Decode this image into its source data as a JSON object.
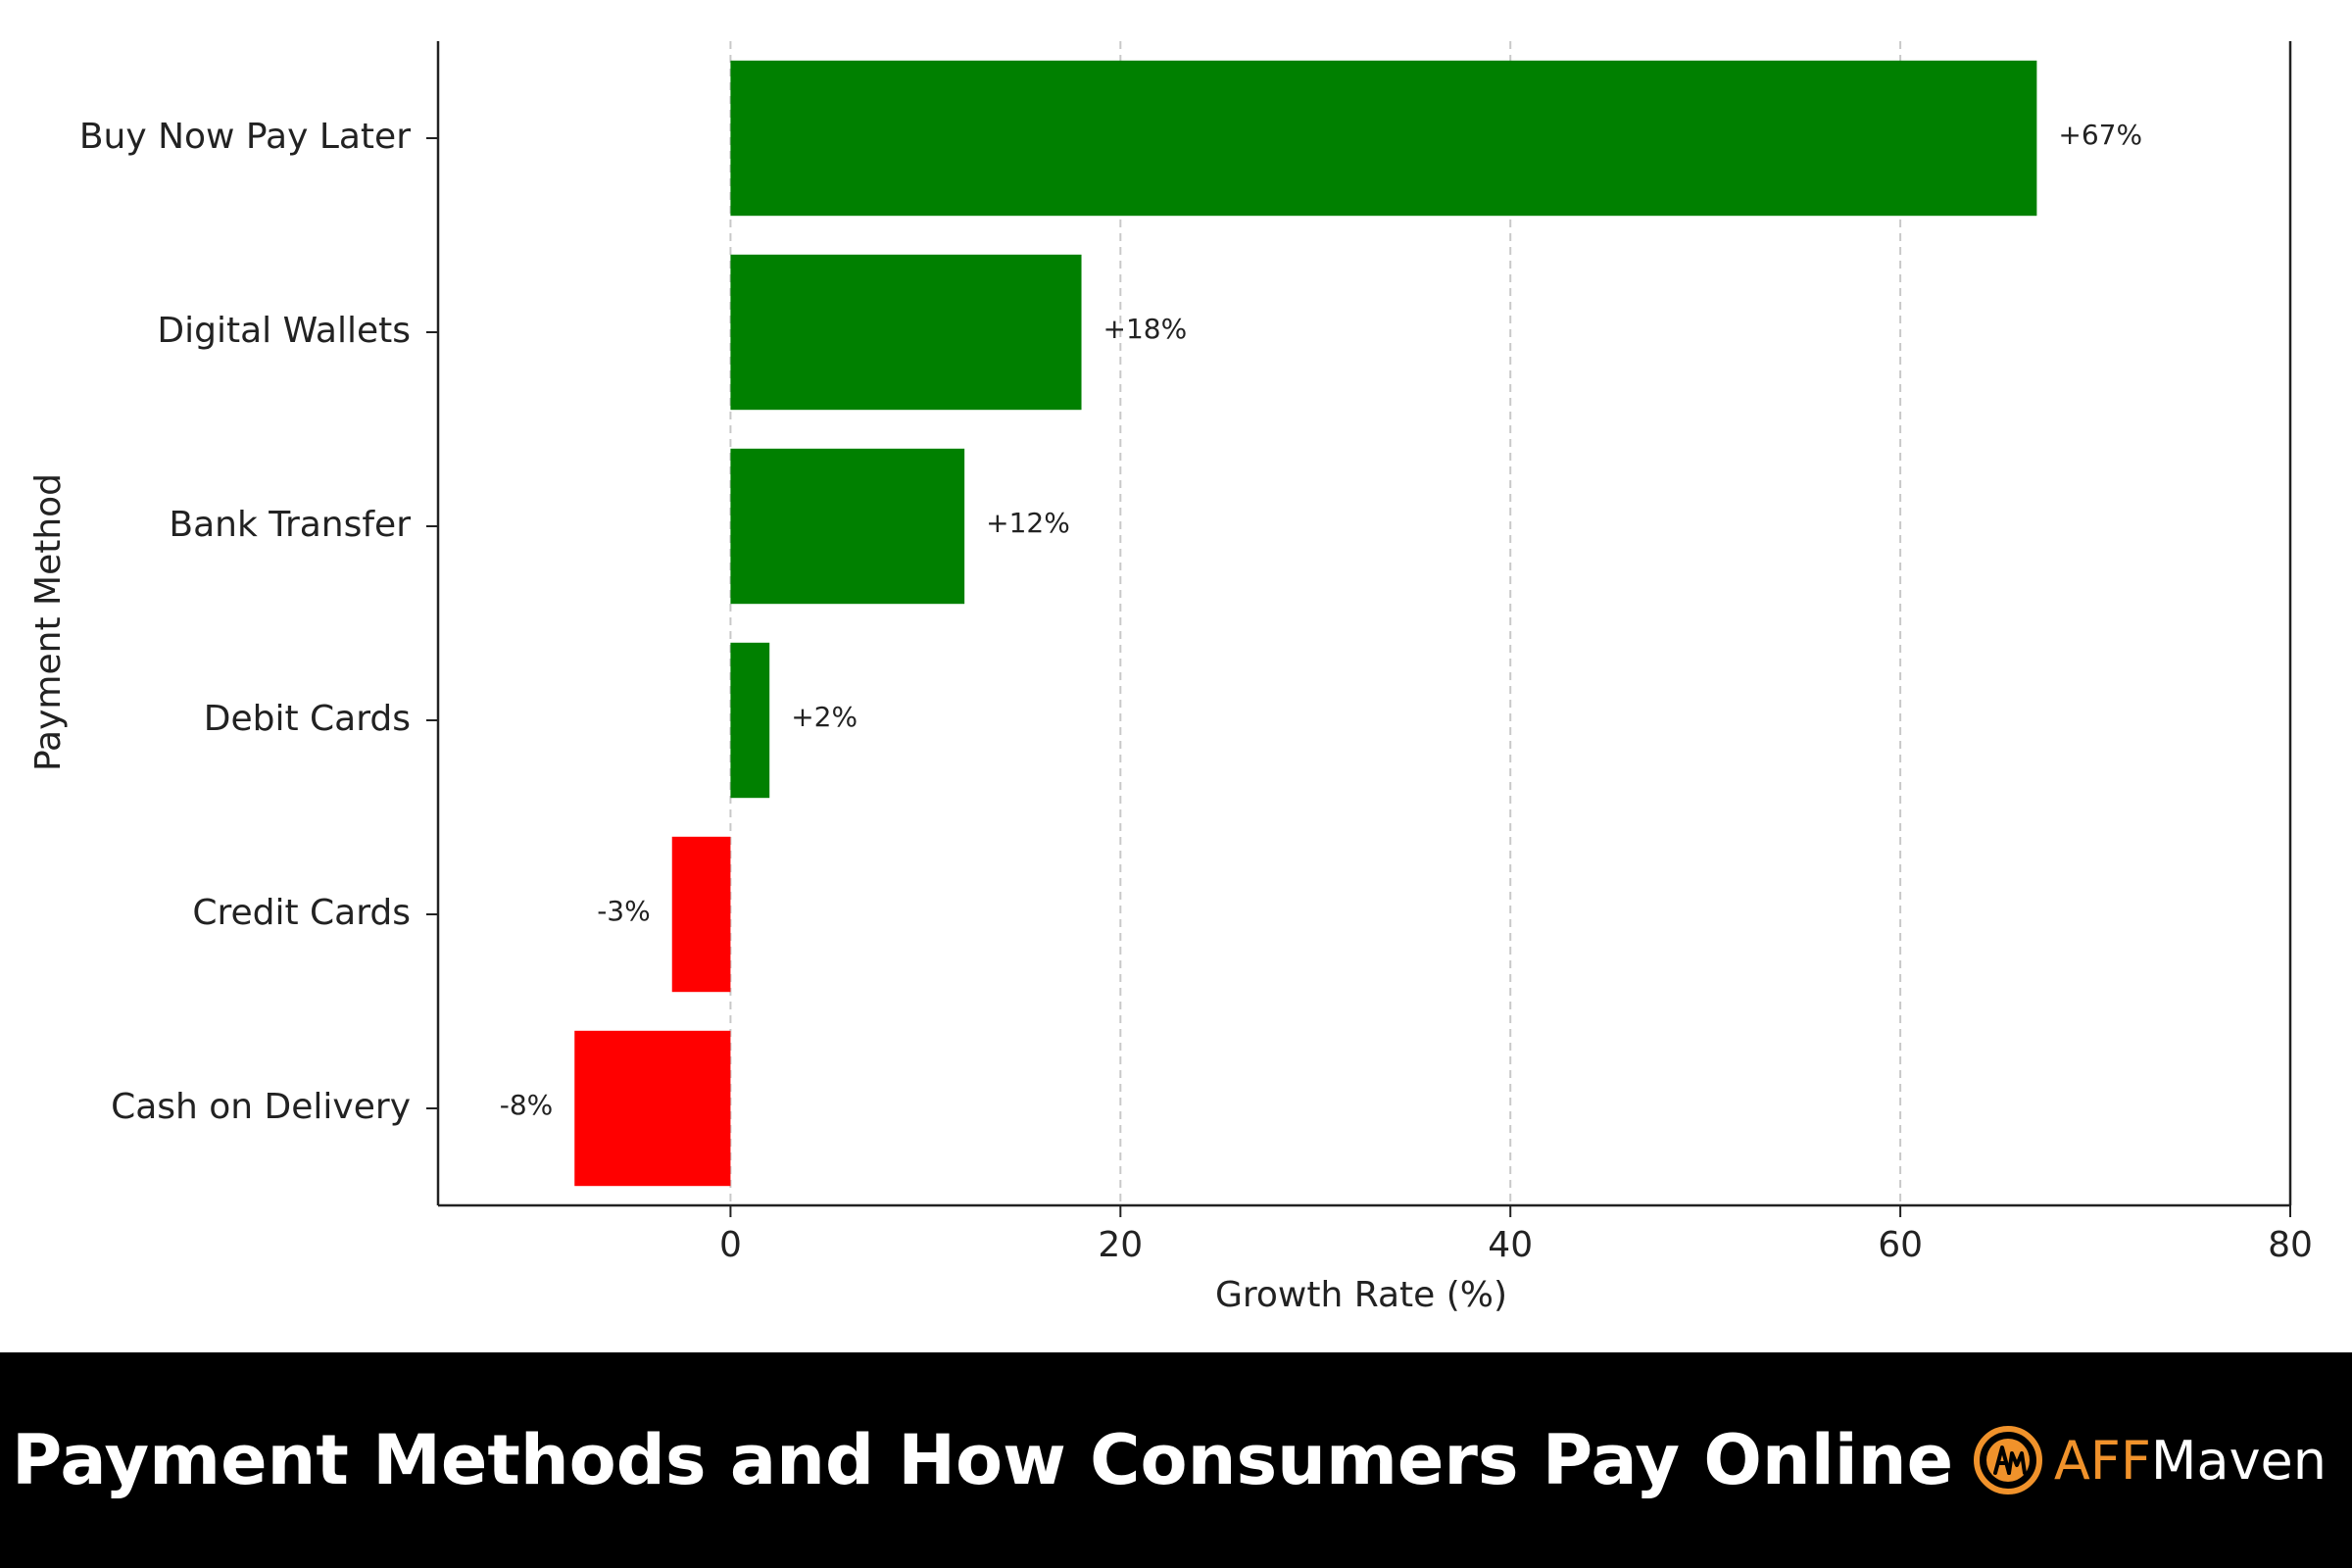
{
  "chart_data": {
    "type": "bar",
    "orientation": "horizontal",
    "categories": [
      "Buy Now Pay Later",
      "Digital Wallets",
      "Bank Transfer",
      "Debit Cards",
      "Credit Cards",
      "Cash on Delivery"
    ],
    "values": [
      67,
      18,
      12,
      2,
      -3,
      -8
    ],
    "data_labels": [
      "+67%",
      "+18%",
      "+12%",
      "+2%",
      "-3%",
      "-8%"
    ],
    "xlabel": "Growth Rate (%)",
    "ylabel": "Payment Method",
    "xlim": [
      -15,
      80
    ],
    "xticks": [
      0,
      20,
      40,
      60,
      80
    ],
    "grid": "vertical-dashed",
    "colors": {
      "positive": "#008000",
      "negative": "#ff0000"
    }
  },
  "footer": {
    "title": "Payment Methods and How Consumers Pay Online",
    "brand_accent": "AFF",
    "brand_rest": "Maven",
    "brand_color": "#f0922b"
  }
}
